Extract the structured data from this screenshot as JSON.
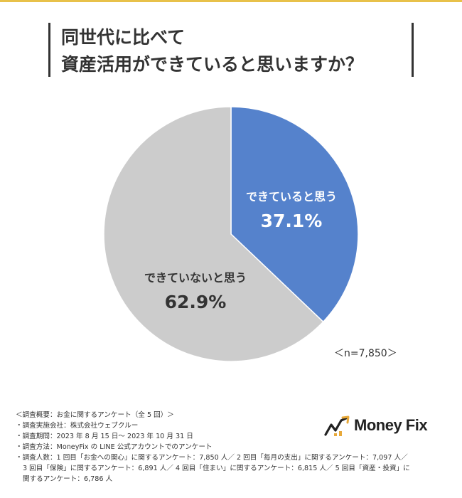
{
  "title_lines": [
    "同世代に比べて",
    "資産活用ができていると思いますか？"
  ],
  "chart_data": {
    "type": "pie",
    "slices": [
      {
        "label": "できていると思う",
        "value": 37.1,
        "value_label": "37.1%",
        "color": "#5582cc"
      },
      {
        "label": "できていないと思う",
        "value": 62.9,
        "value_label": "62.9%",
        "color": "#cccccc"
      }
    ],
    "start_angle_deg": 0,
    "direction": "clockwise",
    "sample_size": "＜n=7,850＞"
  },
  "footer": {
    "lines": [
      "＜調査概要：お金に関するアンケート（全 5 回）＞",
      "・調査実施会社：株式会社ウェブクルー",
      "・調査期間：2023 年 8 月 15 日〜 2023 年 10 月 31 日",
      "・調査方法：MoneyFix の LINE 公式アカウントでのアンケート",
      "・調査人数：1 回目「お金への関心」に関するアンケート：7,850 人／ 2 回目「毎月の支出」に関するアンケート：7,097 人／",
      "3 回目「保険」に関するアンケート：6,891 人／ 4 回目「住まい」に関するアンケート：6,815 人／ 5 回目「資産・投資」に",
      "関するアンケート：6,786 人"
    ]
  },
  "logo": {
    "text": "Money Fix",
    "icon": "money-fix-logo-icon",
    "colors": {
      "text": "#222222",
      "accent": "#e8a93a"
    }
  },
  "colors": {
    "accent_line": "#e8c14a",
    "title_bar": "#333333"
  }
}
